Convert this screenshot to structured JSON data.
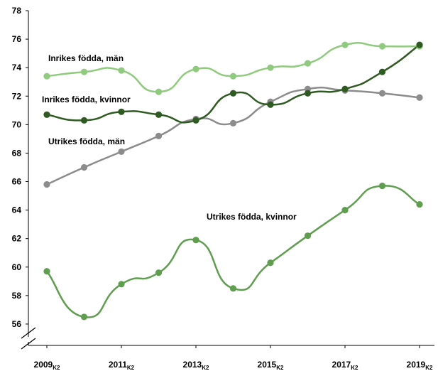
{
  "chart_data": {
    "type": "line",
    "x_labels": [
      {
        "year": "2009",
        "sub": "K2"
      },
      {
        "year": "2011",
        "sub": "K2"
      },
      {
        "year": "2013",
        "sub": "K2"
      },
      {
        "year": "2015",
        "sub": "K2"
      },
      {
        "year": "2017",
        "sub": "K2"
      },
      {
        "year": "2019",
        "sub": "K2"
      }
    ],
    "x": [
      2009,
      2010,
      2011,
      2012,
      2013,
      2014,
      2015,
      2016,
      2017,
      2018,
      2019
    ],
    "y_ticks": [
      "56",
      "58",
      "60",
      "62",
      "64",
      "66",
      "68",
      "70",
      "72",
      "74",
      "76",
      "78"
    ],
    "ylim": [
      54.5,
      78
    ],
    "axis_break": true,
    "grid": false,
    "series": [
      {
        "name": "Inrikes födda, män",
        "color": "#8fca7e",
        "values": [
          73.4,
          73.7,
          73.8,
          72.3,
          73.9,
          73.4,
          74.0,
          74.3,
          75.6,
          75.5,
          75.5
        ]
      },
      {
        "name": "Inrikes födda, kvinnor",
        "color": "#2f5a22",
        "values": [
          70.7,
          70.3,
          70.9,
          70.7,
          70.3,
          72.2,
          71.4,
          72.2,
          72.5,
          73.7,
          75.6
        ]
      },
      {
        "name": "Utrikes födda, män",
        "color": "#8c8c8c",
        "values": [
          65.8,
          67.0,
          68.1,
          69.2,
          70.4,
          70.1,
          71.6,
          72.5,
          72.4,
          72.2,
          71.9
        ]
      },
      {
        "name": "Utrikes födda, kvinnor",
        "color": "#5e9e4e",
        "values": [
          59.7,
          56.5,
          58.8,
          59.6,
          61.9,
          58.5,
          60.3,
          62.2,
          64.0,
          65.7,
          64.4
        ]
      }
    ]
  }
}
